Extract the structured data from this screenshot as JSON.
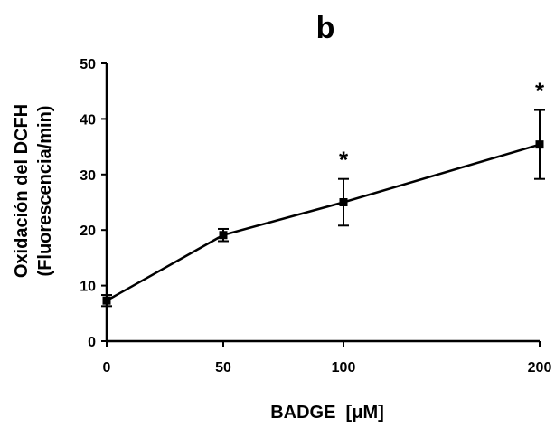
{
  "chart_data": {
    "type": "line",
    "title": "b",
    "xlabel": "BADGE  [μM]",
    "ylabel": [
      "Oxidación del DCFH",
      "(Fluorescencia/min)"
    ],
    "x": [
      0,
      50,
      100,
      200
    ],
    "x_tick_labels": [
      "0",
      "50",
      "100",
      "200"
    ],
    "series": [
      {
        "values": [
          7.3,
          19.1,
          25.0,
          35.4
        ],
        "errors": [
          1.0,
          1.1,
          4.2,
          6.2
        ],
        "significance": [
          "",
          "",
          "*",
          "*"
        ]
      }
    ],
    "y_ticks": [
      0,
      10,
      20,
      30,
      40,
      50
    ],
    "ylim": [
      0,
      50
    ],
    "grid": false,
    "legend": "none",
    "colors": {
      "line": "#000000",
      "marker": "#000000"
    }
  }
}
